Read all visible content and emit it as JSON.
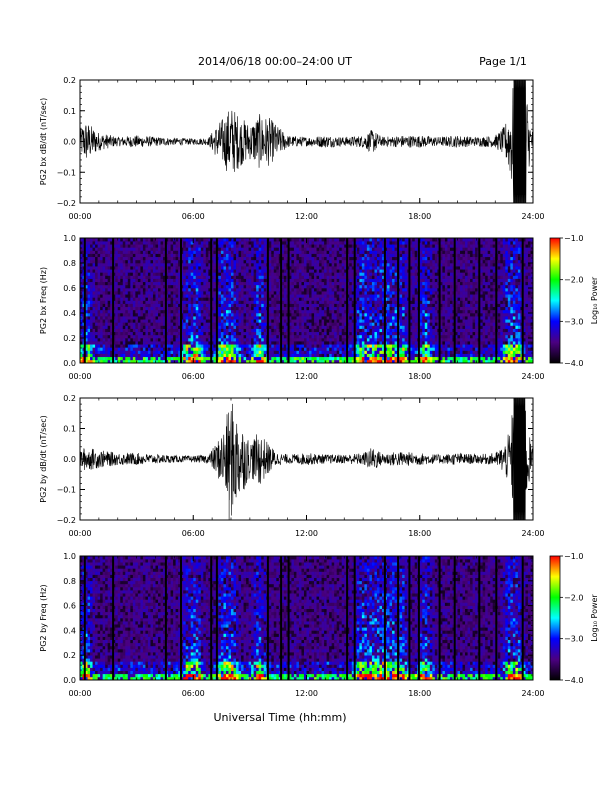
{
  "header": {
    "date_range": "2014/06/18  00:00–24:00 UT",
    "page": "Page 1/1"
  },
  "footer": {
    "xlabel": "Universal Time (hh:mm)"
  },
  "chart_data": [
    {
      "type": "line",
      "ylabel": "PG2 bx dB/dt (nT/sec)",
      "xlim": [
        0,
        24
      ],
      "ylim": [
        -0.2,
        0.2
      ],
      "yticks": [
        "0.2",
        "0.1",
        "0.0",
        "−0.1",
        "−0.2"
      ],
      "xticks": [
        "00:00",
        "06:00",
        "12:00",
        "18:00",
        "24:00"
      ],
      "color": "#000000",
      "envelope": {
        "time_hours": [
          0,
          0.3,
          1,
          2,
          3,
          4,
          5,
          6,
          6.8,
          7.2,
          7.6,
          8.0,
          8.5,
          9.0,
          9.5,
          10.0,
          10.5,
          11,
          12,
          13,
          14,
          15,
          15.5,
          16,
          17,
          18,
          19,
          20,
          21,
          22,
          22.5,
          22.8,
          23.0,
          23.3,
          23.6,
          23.8,
          24
        ],
        "amplitude": [
          0.04,
          0.07,
          0.03,
          0.015,
          0.02,
          0.015,
          0.012,
          0.01,
          0.012,
          0.05,
          0.08,
          0.12,
          0.08,
          0.06,
          0.09,
          0.08,
          0.05,
          0.02,
          0.015,
          0.02,
          0.015,
          0.02,
          0.04,
          0.015,
          0.02,
          0.02,
          0.015,
          0.02,
          0.015,
          0.02,
          0.05,
          0.12,
          0.22,
          0.22,
          0.22,
          0.08,
          0.03
        ]
      }
    },
    {
      "type": "heatmap",
      "ylabel": "PG2 bx Freq (Hz)",
      "xlim": [
        0,
        24
      ],
      "ylim": [
        0.0,
        1.0
      ],
      "yticks": [
        "1.0",
        "0.8",
        "0.6",
        "0.4",
        "0.2",
        "0.0"
      ],
      "xticks": [
        "00:00",
        "06:00",
        "12:00",
        "18:00",
        "24:00"
      ],
      "colorbar": {
        "label": "Log₁₀ Power",
        "ticks": [
          "−1.0",
          "−2.0",
          "−3.0",
          "−4.0"
        ],
        "range": [
          -4.0,
          -1.0
        ],
        "colors": [
          "#000000",
          "#4b0082",
          "#0000ff",
          "#00ffff",
          "#00ff00",
          "#ffff00",
          "#ff0000"
        ]
      },
      "activity_hours": [
        0.3,
        5.8,
        6.1,
        7.6,
        8.0,
        9.5,
        14.9,
        15.5,
        15.9,
        16.4,
        17.0,
        18.3,
        22.8,
        23.1
      ],
      "gap_hours": [
        0.2,
        1.7,
        4.5,
        5.3,
        6.9,
        7.2,
        9.9,
        10.6,
        11.0,
        14.1,
        14.5,
        16.1,
        16.8,
        17.4,
        17.9,
        19.0,
        19.8,
        21.1,
        22.0,
        23.4
      ]
    },
    {
      "type": "line",
      "ylabel": "PG2 by dB/dt (nT/sec)",
      "xlim": [
        0,
        24
      ],
      "ylim": [
        -0.2,
        0.2
      ],
      "yticks": [
        "0.2",
        "0.1",
        "0.0",
        "−0.1",
        "−0.2"
      ],
      "xticks": [
        "00:00",
        "06:00",
        "12:00",
        "18:00",
        "24:00"
      ],
      "color": "#000000",
      "envelope": {
        "time_hours": [
          0,
          0.3,
          1,
          2,
          3,
          4,
          5,
          6,
          6.8,
          7.2,
          7.6,
          8.0,
          8.3,
          8.7,
          9.0,
          9.5,
          10.0,
          10.5,
          11,
          12,
          13,
          14,
          15,
          15.5,
          16,
          17,
          18,
          19,
          20,
          21,
          22,
          22.5,
          22.8,
          23.0,
          23.3,
          23.6,
          23.8,
          24
        ],
        "amplitude": [
          0.03,
          0.04,
          0.03,
          0.02,
          0.02,
          0.015,
          0.012,
          0.01,
          0.015,
          0.05,
          0.1,
          0.2,
          0.15,
          0.1,
          0.06,
          0.09,
          0.05,
          0.02,
          0.015,
          0.02,
          0.015,
          0.015,
          0.02,
          0.04,
          0.02,
          0.025,
          0.02,
          0.015,
          0.02,
          0.015,
          0.02,
          0.05,
          0.1,
          0.22,
          0.22,
          0.2,
          0.08,
          0.03
        ]
      }
    },
    {
      "type": "heatmap",
      "ylabel": "PG2 by Freq (Hz)",
      "xlim": [
        0,
        24
      ],
      "ylim": [
        0.0,
        1.0
      ],
      "yticks": [
        "1.0",
        "0.8",
        "0.6",
        "0.4",
        "0.2",
        "0.0"
      ],
      "xticks": [
        "00:00",
        "06:00",
        "12:00",
        "18:00",
        "24:00"
      ],
      "colorbar": {
        "label": "Log₁₀ Power",
        "ticks": [
          "−1.0",
          "−2.0",
          "−3.0",
          "−4.0"
        ],
        "range": [
          -4.0,
          -1.0
        ],
        "colors": [
          "#000000",
          "#4b0082",
          "#0000ff",
          "#00ffff",
          "#00ff00",
          "#ffff00",
          "#ff0000"
        ]
      },
      "activity_hours": [
        0.3,
        5.8,
        6.1,
        7.6,
        8.0,
        9.5,
        14.9,
        15.5,
        15.9,
        16.4,
        17.0,
        18.3,
        22.8,
        23.1
      ],
      "gap_hours": [
        0.2,
        1.7,
        4.5,
        5.3,
        6.9,
        7.2,
        9.9,
        10.6,
        11.0,
        14.1,
        14.5,
        16.1,
        16.8,
        17.4,
        17.9,
        19.0,
        19.8,
        21.1,
        22.0,
        23.4
      ]
    }
  ]
}
